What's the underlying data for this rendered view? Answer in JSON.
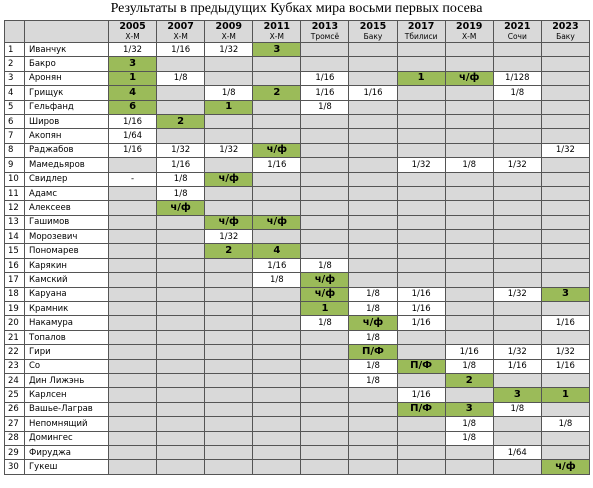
{
  "header": {
    "title": "Результаты в предыдущих Кубках мира восьми первых посева"
  },
  "table": {
    "columns": [
      {
        "year": "2005",
        "venue": "Х-М"
      },
      {
        "year": "2007",
        "venue": "Х-М"
      },
      {
        "year": "2009",
        "venue": "Х-М"
      },
      {
        "year": "2011",
        "venue": "Х-М"
      },
      {
        "year": "2013",
        "venue": "Тромсё"
      },
      {
        "year": "2015",
        "venue": "Баку"
      },
      {
        "year": "2017",
        "venue": "Тбилиси"
      },
      {
        "year": "2019",
        "venue": "Х-М"
      },
      {
        "year": "2021",
        "venue": "Сочи"
      },
      {
        "year": "2023",
        "venue": "Баку"
      }
    ],
    "highlight_color": "#9bbb59",
    "empty_color": "#d9d9d9",
    "rows": [
      {
        "num": "1",
        "name": "Иванчук",
        "cells": [
          "1/32",
          "1/16",
          "1/32",
          "3",
          null,
          null,
          null,
          null,
          null,
          null
        ],
        "highlighted": [
          3
        ]
      },
      {
        "num": "2",
        "name": "Бакро",
        "cells": [
          "3",
          null,
          null,
          null,
          null,
          null,
          null,
          null,
          null,
          null
        ],
        "highlighted": [
          0
        ]
      },
      {
        "num": "3",
        "name": "Аронян",
        "cells": [
          "1",
          "1/8",
          null,
          null,
          "1/16",
          null,
          "1",
          "ч/ф",
          "1/128",
          null
        ],
        "highlighted": [
          0,
          6,
          7
        ]
      },
      {
        "num": "4",
        "name": "Грищук",
        "cells": [
          "4",
          null,
          "1/8",
          "2",
          "1/16",
          "1/16",
          null,
          null,
          "1/8",
          null
        ],
        "highlighted": [
          0,
          3
        ]
      },
      {
        "num": "5",
        "name": "Гельфанд",
        "cells": [
          "6",
          null,
          "1",
          null,
          "1/8",
          null,
          null,
          null,
          null,
          null
        ],
        "highlighted": [
          0,
          2
        ]
      },
      {
        "num": "6",
        "name": "Широв",
        "cells": [
          "1/16",
          "2",
          null,
          null,
          null,
          null,
          null,
          null,
          null,
          null
        ],
        "highlighted": [
          1
        ]
      },
      {
        "num": "7",
        "name": "Акопян",
        "cells": [
          "1/64",
          null,
          null,
          null,
          null,
          null,
          null,
          null,
          null,
          null
        ],
        "highlighted": []
      },
      {
        "num": "8",
        "name": "Раджабов",
        "cells": [
          "1/16",
          "1/32",
          "1/32",
          "ч/ф",
          null,
          null,
          null,
          null,
          null,
          "1/32"
        ],
        "highlighted": [
          3
        ]
      },
      {
        "num": "9",
        "name": "Мамедьяров",
        "cells": [
          null,
          "1/16",
          null,
          "1/16",
          null,
          null,
          "1/32",
          "1/8",
          "1/32",
          null
        ],
        "highlighted": []
      },
      {
        "num": "10",
        "name": "Свидлер",
        "cells": [
          "-",
          "1/8",
          "ч/ф",
          null,
          null,
          null,
          null,
          null,
          null,
          null
        ],
        "highlighted": [
          2
        ]
      },
      {
        "num": "11",
        "name": "Адамс",
        "cells": [
          null,
          "1/8",
          null,
          null,
          null,
          null,
          null,
          null,
          null,
          null
        ],
        "highlighted": []
      },
      {
        "num": "12",
        "name": "Алексеев",
        "cells": [
          null,
          "ч/ф",
          null,
          null,
          null,
          null,
          null,
          null,
          null,
          null
        ],
        "highlighted": [
          1
        ]
      },
      {
        "num": "13",
        "name": "Гашимов",
        "cells": [
          null,
          null,
          "ч/ф",
          "ч/ф",
          null,
          null,
          null,
          null,
          null,
          null
        ],
        "highlighted": [
          2,
          3
        ]
      },
      {
        "num": "14",
        "name": "Морозевич",
        "cells": [
          null,
          null,
          "1/32",
          null,
          null,
          null,
          null,
          null,
          null,
          null
        ],
        "highlighted": []
      },
      {
        "num": "15",
        "name": "Пономарев",
        "cells": [
          null,
          null,
          "2",
          "4",
          null,
          null,
          null,
          null,
          null,
          null
        ],
        "highlighted": [
          2,
          3
        ]
      },
      {
        "num": "16",
        "name": "Карякин",
        "cells": [
          null,
          null,
          null,
          "1/16",
          "1/8",
          null,
          null,
          null,
          null,
          null
        ],
        "highlighted": []
      },
      {
        "num": "17",
        "name": "Камский",
        "cells": [
          null,
          null,
          null,
          "1/8",
          "ч/ф",
          null,
          null,
          null,
          null,
          null
        ],
        "highlighted": [
          4
        ]
      },
      {
        "num": "18",
        "name": "Каруана",
        "cells": [
          null,
          null,
          null,
          null,
          "ч/ф",
          "1/8",
          "1/16",
          null,
          "1/32",
          "3"
        ],
        "highlighted": [
          4,
          9
        ]
      },
      {
        "num": "19",
        "name": "Крамник",
        "cells": [
          null,
          null,
          null,
          null,
          "1",
          "1/8",
          "1/16",
          null,
          null,
          null
        ],
        "highlighted": [
          4
        ]
      },
      {
        "num": "20",
        "name": "Накамура",
        "cells": [
          null,
          null,
          null,
          null,
          "1/8",
          "ч/ф",
          "1/16",
          null,
          null,
          "1/16"
        ],
        "highlighted": [
          5
        ]
      },
      {
        "num": "21",
        "name": "Топалов",
        "cells": [
          null,
          null,
          null,
          null,
          null,
          "1/8",
          null,
          null,
          null,
          null
        ],
        "highlighted": []
      },
      {
        "num": "22",
        "name": "Гири",
        "cells": [
          null,
          null,
          null,
          null,
          null,
          "П/Ф",
          null,
          "1/16",
          "1/32",
          "1/32"
        ],
        "highlighted": [
          5
        ]
      },
      {
        "num": "23",
        "name": "Со",
        "cells": [
          null,
          null,
          null,
          null,
          null,
          "1/8",
          "П/Ф",
          "1/8",
          "1/16",
          "1/16"
        ],
        "highlighted": [
          6
        ]
      },
      {
        "num": "24",
        "name": "Дин Лижэнь",
        "cells": [
          null,
          null,
          null,
          null,
          null,
          "1/8",
          null,
          "2",
          null,
          null
        ],
        "highlighted": [
          7
        ]
      },
      {
        "num": "25",
        "name": "Карлсен",
        "cells": [
          null,
          null,
          null,
          null,
          null,
          null,
          "1/16",
          null,
          "3",
          "1"
        ],
        "highlighted": [
          8,
          9
        ]
      },
      {
        "num": "26",
        "name": "Вашье-Лаграв",
        "cells": [
          null,
          null,
          null,
          null,
          null,
          null,
          "П/Ф",
          "3",
          "1/8",
          null
        ],
        "highlighted": [
          6,
          7
        ]
      },
      {
        "num": "27",
        "name": "Непомнящий",
        "cells": [
          null,
          null,
          null,
          null,
          null,
          null,
          null,
          "1/8",
          null,
          "1/8"
        ],
        "highlighted": []
      },
      {
        "num": "28",
        "name": "Домингес",
        "cells": [
          null,
          null,
          null,
          null,
          null,
          null,
          null,
          "1/8",
          null,
          null
        ],
        "highlighted": []
      },
      {
        "num": "29",
        "name": "Фируджа",
        "cells": [
          null,
          null,
          null,
          null,
          null,
          null,
          null,
          null,
          "1/64",
          null
        ],
        "highlighted": []
      },
      {
        "num": "30",
        "name": "Гукеш",
        "cells": [
          null,
          null,
          null,
          null,
          null,
          null,
          null,
          null,
          null,
          "ч/ф"
        ],
        "highlighted": [
          9
        ]
      }
    ]
  }
}
